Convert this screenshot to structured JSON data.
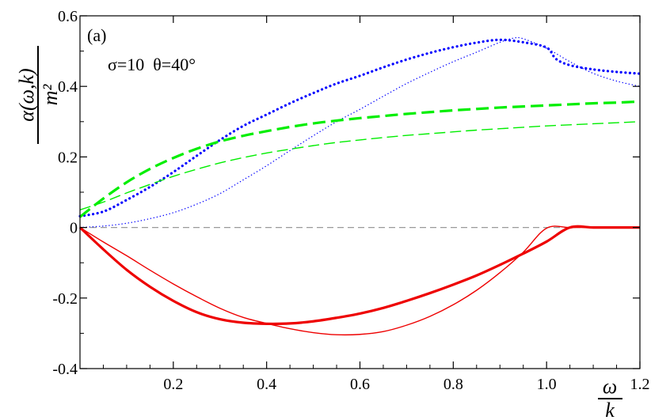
{
  "chart_data": {
    "type": "line",
    "panel_label": "(a)",
    "annotation": "σ=10  θ=40°",
    "ylabel_numerator": "α(ω,k)",
    "ylabel_denominator": "m²",
    "xlabel_numerator": "ω",
    "xlabel_denominator": "k",
    "xlim": [
      0,
      1.2
    ],
    "ylim": [
      -0.4,
      0.6
    ],
    "xticks": [
      0.2,
      0.4,
      0.6,
      0.8,
      1.0,
      1.2
    ],
    "xtick_labels": [
      "0.2",
      "0.4",
      "0.6",
      "0.8",
      "1.0",
      "1.2"
    ],
    "yticks": [
      -0.4,
      -0.2,
      0,
      0.2,
      0.4,
      0.6
    ],
    "ytick_labels": [
      "-0.4",
      "-0.2",
      "0",
      "0.2",
      "0.4",
      "0.6"
    ],
    "reference_line": {
      "y": 0,
      "color": "#999999",
      "style": "dashed"
    },
    "series": [
      {
        "color": "#0000ff",
        "style": "dotted",
        "weight": "thick",
        "x": [
          0,
          0.05,
          0.1,
          0.15,
          0.2,
          0.25,
          0.3,
          0.35,
          0.4,
          0.45,
          0.5,
          0.55,
          0.6,
          0.65,
          0.7,
          0.75,
          0.8,
          0.85,
          0.9,
          0.95,
          1.0,
          1.02,
          1.05,
          1.1,
          1.15,
          1.2
        ],
        "y": [
          0.032,
          0.045,
          0.078,
          0.115,
          0.157,
          0.203,
          0.248,
          0.288,
          0.32,
          0.352,
          0.381,
          0.408,
          0.43,
          0.454,
          0.476,
          0.495,
          0.511,
          0.524,
          0.532,
          0.525,
          0.51,
          0.478,
          0.46,
          0.448,
          0.441,
          0.436
        ]
      },
      {
        "color": "#0000ff",
        "style": "dotted",
        "weight": "thin",
        "x": [
          0,
          0.05,
          0.1,
          0.15,
          0.2,
          0.25,
          0.3,
          0.35,
          0.4,
          0.45,
          0.5,
          0.55,
          0.6,
          0.65,
          0.7,
          0.75,
          0.8,
          0.85,
          0.9,
          0.93,
          0.95,
          1.0,
          1.05,
          1.1,
          1.15,
          1.2
        ],
        "y": [
          0.0,
          0.004,
          0.012,
          0.025,
          0.042,
          0.066,
          0.096,
          0.135,
          0.175,
          0.218,
          0.26,
          0.3,
          0.335,
          0.372,
          0.408,
          0.44,
          0.47,
          0.497,
          0.525,
          0.537,
          0.535,
          0.508,
          0.47,
          0.437,
          0.415,
          0.4
        ]
      },
      {
        "color": "#00ee00",
        "style": "dashed",
        "weight": "thick",
        "x": [
          0,
          0.05,
          0.1,
          0.15,
          0.2,
          0.25,
          0.3,
          0.35,
          0.4,
          0.45,
          0.5,
          0.55,
          0.6,
          0.65,
          0.7,
          0.75,
          0.8,
          0.85,
          0.9,
          0.95,
          1.0,
          1.05,
          1.1,
          1.15,
          1.2
        ],
        "y": [
          0.03,
          0.082,
          0.128,
          0.166,
          0.197,
          0.223,
          0.244,
          0.26,
          0.273,
          0.285,
          0.295,
          0.303,
          0.31,
          0.316,
          0.322,
          0.327,
          0.332,
          0.336,
          0.34,
          0.343,
          0.346,
          0.349,
          0.352,
          0.354,
          0.357
        ]
      },
      {
        "color": "#00ee00",
        "style": "dashed",
        "weight": "thin",
        "x": [
          0,
          0.05,
          0.1,
          0.15,
          0.2,
          0.25,
          0.3,
          0.35,
          0.4,
          0.45,
          0.5,
          0.55,
          0.6,
          0.65,
          0.7,
          0.75,
          0.8,
          0.85,
          0.9,
          0.95,
          1.0,
          1.05,
          1.1,
          1.15,
          1.2
        ],
        "y": [
          0.05,
          0.072,
          0.098,
          0.122,
          0.145,
          0.165,
          0.183,
          0.198,
          0.211,
          0.222,
          0.232,
          0.241,
          0.248,
          0.255,
          0.261,
          0.266,
          0.271,
          0.276,
          0.28,
          0.284,
          0.288,
          0.291,
          0.294,
          0.297,
          0.3
        ]
      },
      {
        "color": "#ee0000",
        "style": "solid",
        "weight": "thick",
        "x": [
          0,
          0.05,
          0.1,
          0.15,
          0.2,
          0.25,
          0.3,
          0.35,
          0.4,
          0.45,
          0.5,
          0.55,
          0.6,
          0.65,
          0.7,
          0.75,
          0.8,
          0.85,
          0.9,
          0.95,
          1.0,
          1.05,
          1.1,
          1.15,
          1.2
        ],
        "y": [
          0,
          -0.062,
          -0.12,
          -0.168,
          -0.208,
          -0.24,
          -0.26,
          -0.27,
          -0.273,
          -0.272,
          -0.266,
          -0.256,
          -0.244,
          -0.228,
          -0.208,
          -0.186,
          -0.162,
          -0.136,
          -0.106,
          -0.074,
          -0.04,
          0,
          0,
          0,
          0
        ]
      },
      {
        "color": "#ee0000",
        "style": "solid",
        "weight": "thin",
        "x": [
          0,
          0.05,
          0.1,
          0.15,
          0.2,
          0.25,
          0.3,
          0.35,
          0.4,
          0.45,
          0.5,
          0.55,
          0.6,
          0.65,
          0.7,
          0.75,
          0.8,
          0.85,
          0.9,
          0.95,
          1.0,
          1.05,
          1.1,
          1.15,
          1.2
        ],
        "y": [
          0,
          -0.041,
          -0.08,
          -0.121,
          -0.16,
          -0.196,
          -0.229,
          -0.255,
          -0.272,
          -0.287,
          -0.298,
          -0.304,
          -0.303,
          -0.295,
          -0.277,
          -0.252,
          -0.219,
          -0.178,
          -0.128,
          -0.07,
          -0.002,
          0,
          0,
          0,
          0
        ]
      }
    ]
  }
}
